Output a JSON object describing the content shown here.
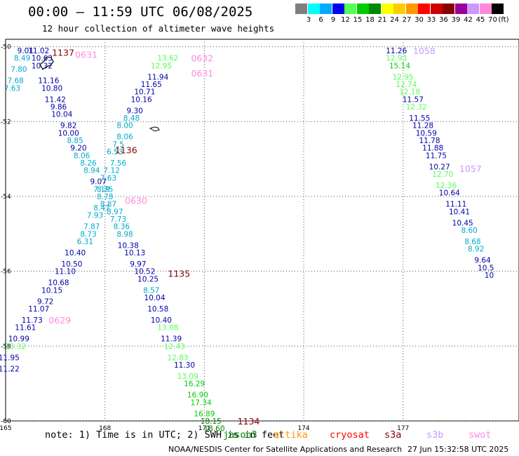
{
  "header": {
    "title": "00:00 – 11:59 UTC 06/08/2025",
    "subtitle": "12 hour collection of altimeter wave heights"
  },
  "legend": {
    "unit": "(ft)",
    "items": [
      {
        "label": "3",
        "color": "#7f7f7f"
      },
      {
        "label": "6",
        "color": "#00ffff"
      },
      {
        "label": "9",
        "color": "#00aaff"
      },
      {
        "label": "12",
        "color": "#0000ee"
      },
      {
        "label": "15",
        "color": "#55ff55"
      },
      {
        "label": "18",
        "color": "#00cc00"
      },
      {
        "label": "21",
        "color": "#008800"
      },
      {
        "label": "24",
        "color": "#ffff00"
      },
      {
        "label": "27",
        "color": "#ffcc00"
      },
      {
        "label": "30",
        "color": "#ff9900"
      },
      {
        "label": "33",
        "color": "#ff0000"
      },
      {
        "label": "36",
        "color": "#cc0000"
      },
      {
        "label": "39",
        "color": "#880000"
      },
      {
        "label": "42",
        "color": "#990099"
      },
      {
        "label": "45",
        "color": "#cc99ff"
      },
      {
        "label": "70",
        "color": "#ff88dd"
      },
      {
        "label": "",
        "color": "#000000"
      }
    ]
  },
  "axes": {
    "lon_ticks": [
      {
        "value": 165,
        "label": "165"
      },
      {
        "value": 168,
        "label": "168"
      },
      {
        "value": 171,
        "label": "171"
      },
      {
        "value": 174,
        "label": "174"
      },
      {
        "value": 177,
        "label": "177"
      }
    ],
    "lat_ticks": [
      {
        "value": -50,
        "label": "-50"
      },
      {
        "value": -52,
        "label": "-52"
      },
      {
        "value": -54,
        "label": "-54"
      },
      {
        "value": -56,
        "label": "-56"
      },
      {
        "value": -58,
        "label": "-58"
      },
      {
        "value": -60,
        "label": "-60"
      }
    ],
    "lon_range": [
      165,
      180.5
    ],
    "lat_range": [
      -60,
      -49.8
    ]
  },
  "chart_data": {
    "type": "scatter",
    "tracks": [
      {
        "time": "1137",
        "color": "#880000",
        "label_pos": {
          "lon": 166.4,
          "lat": -50.15
        },
        "points": [
          {
            "lon": 165.6,
            "lat": -50.1,
            "v": "9.01",
            "c": "#0000aa"
          },
          {
            "lon": 165.5,
            "lat": -50.3,
            "v": "8.49",
            "c": "#00aacc"
          },
          {
            "lon": 165.4,
            "lat": -50.6,
            "v": "7.80",
            "c": "#00aacc"
          },
          {
            "lon": 165.3,
            "lat": -50.9,
            "v": "7.68",
            "c": "#00aacc"
          },
          {
            "lon": 165.2,
            "lat": -51.1,
            "v": "7.63",
            "c": "#00aacc"
          }
        ]
      },
      {
        "time": "0631",
        "color": "#ff88dd",
        "label_pos": {
          "lon": 167.1,
          "lat": -50.2
        },
        "points": [
          {
            "lon": 166.0,
            "lat": -50.1,
            "v": "11.02",
            "c": "#0000aa"
          },
          {
            "lon": 166.1,
            "lat": -50.3,
            "v": "10.63",
            "c": "#0000aa"
          },
          {
            "lon": 166.1,
            "lat": -50.5,
            "v": "10.32",
            "c": "#0000aa"
          },
          {
            "lon": 166.3,
            "lat": -50.9,
            "v": "11.16",
            "c": "#0000aa"
          },
          {
            "lon": 166.4,
            "lat": -51.1,
            "v": "10.80",
            "c": "#0000aa"
          },
          {
            "lon": 166.5,
            "lat": -51.4,
            "v": "11.42",
            "c": "#0000aa"
          },
          {
            "lon": 166.6,
            "lat": -51.6,
            "v": "9.86",
            "c": "#0000aa"
          },
          {
            "lon": 166.7,
            "lat": -51.8,
            "v": "10.04",
            "c": "#0000aa"
          },
          {
            "lon": 166.9,
            "lat": -52.1,
            "v": "9.82",
            "c": "#0000aa"
          },
          {
            "lon": 166.9,
            "lat": -52.3,
            "v": "10.00",
            "c": "#0000aa"
          },
          {
            "lon": 167.1,
            "lat": -52.5,
            "v": "8.85",
            "c": "#00aacc"
          },
          {
            "lon": 167.2,
            "lat": -52.7,
            "v": "9.20",
            "c": "#0000aa"
          },
          {
            "lon": 167.3,
            "lat": -52.9,
            "v": "8.06",
            "c": "#00aacc"
          },
          {
            "lon": 167.5,
            "lat": -53.1,
            "v": "8.26",
            "c": "#00aacc"
          },
          {
            "lon": 167.6,
            "lat": -53.3,
            "v": "8.94",
            "c": "#00aacc"
          },
          {
            "lon": 167.8,
            "lat": -53.6,
            "v": "9.07",
            "c": "#0000aa"
          },
          {
            "lon": 167.9,
            "lat": -53.8,
            "v": "7.19",
            "c": "#00aacc"
          },
          {
            "lon": 168.0,
            "lat": -54.0,
            "v": "8.78",
            "c": "#00aacc"
          },
          {
            "lon": 168.1,
            "lat": -54.2,
            "v": "8.87",
            "c": "#00aacc"
          },
          {
            "lon": 168.3,
            "lat": -54.4,
            "v": "8.97",
            "c": "#00aacc"
          },
          {
            "lon": 168.4,
            "lat": -54.6,
            "v": "7.73",
            "c": "#00aacc"
          },
          {
            "lon": 168.5,
            "lat": -54.8,
            "v": "8.36",
            "c": "#00aacc"
          },
          {
            "lon": 168.6,
            "lat": -55.0,
            "v": "8.98",
            "c": "#00aacc"
          },
          {
            "lon": 168.7,
            "lat": -55.3,
            "v": "10.38",
            "c": "#0000aa"
          },
          {
            "lon": 168.9,
            "lat": -55.5,
            "v": "10.13",
            "c": "#0000aa"
          },
          {
            "lon": 169.0,
            "lat": -55.8,
            "v": "9.97",
            "c": "#0000aa"
          },
          {
            "lon": 169.2,
            "lat": -56.0,
            "v": "10.52",
            "c": "#0000aa"
          },
          {
            "lon": 169.3,
            "lat": -56.2,
            "v": "10.25",
            "c": "#0000aa"
          },
          {
            "lon": 169.4,
            "lat": -56.5,
            "v": "8.57",
            "c": "#00aacc"
          },
          {
            "lon": 169.5,
            "lat": -56.7,
            "v": "10.04",
            "c": "#0000aa"
          },
          {
            "lon": 169.6,
            "lat": -57.0,
            "v": "10.58",
            "c": "#0000aa"
          },
          {
            "lon": 169.7,
            "lat": -57.3,
            "v": "10.40",
            "c": "#0000aa"
          },
          {
            "lon": 169.9,
            "lat": -57.5,
            "v": "13.08",
            "c": "#55ff55"
          },
          {
            "lon": 170.0,
            "lat": -57.8,
            "v": "11.39",
            "c": "#0000aa"
          },
          {
            "lon": 170.1,
            "lat": -58.0,
            "v": "12.43",
            "c": "#55ff55"
          },
          {
            "lon": 170.2,
            "lat": -58.3,
            "v": "12.83",
            "c": "#55ff55"
          },
          {
            "lon": 170.4,
            "lat": -58.5,
            "v": "11.30",
            "c": "#0000aa"
          },
          {
            "lon": 170.5,
            "lat": -58.8,
            "v": "13.09",
            "c": "#55ff55"
          },
          {
            "lon": 170.7,
            "lat": -59.0,
            "v": "16.29",
            "c": "#00cc00"
          },
          {
            "lon": 170.8,
            "lat": -59.3,
            "v": "16.90",
            "c": "#00cc00"
          },
          {
            "lon": 170.9,
            "lat": -59.5,
            "v": "17.34",
            "c": "#00cc00"
          },
          {
            "lon": 171.0,
            "lat": -59.8,
            "v": "16.89",
            "c": "#00cc00"
          },
          {
            "lon": 171.2,
            "lat": -60.0,
            "v": "18.15",
            "c": "#008800"
          },
          {
            "lon": 171.3,
            "lat": -60.2,
            "v": "18.60",
            "c": "#008800"
          }
        ]
      },
      {
        "time": "0632",
        "color": "#ff88dd",
        "label_pos": {
          "lon": 170.6,
          "lat": -50.3
        },
        "points": [
          {
            "lon": 169.9,
            "lat": -50.3,
            "v": "13.62",
            "c": "#55ff55"
          },
          {
            "lon": 169.7,
            "lat": -50.5,
            "v": "12.95",
            "c": "#55ff55"
          },
          {
            "lon": 169.6,
            "lat": -50.8,
            "v": "11.94",
            "c": "#0000aa"
          },
          {
            "lon": 169.4,
            "lat": -51.0,
            "v": "11.65",
            "c": "#0000aa"
          },
          {
            "lon": 169.2,
            "lat": -51.2,
            "v": "10.71",
            "c": "#0000aa"
          },
          {
            "lon": 169.1,
            "lat": -51.4,
            "v": "10.16",
            "c": "#0000aa"
          },
          {
            "lon": 168.9,
            "lat": -51.7,
            "v": "9.30",
            "c": "#0000aa"
          },
          {
            "lon": 168.8,
            "lat": -51.9,
            "v": "8.48",
            "c": "#00aacc"
          },
          {
            "lon": 168.6,
            "lat": -52.1,
            "v": "8.00",
            "c": "#00aacc"
          },
          {
            "lon": 168.6,
            "lat": -52.4,
            "v": "8.06",
            "c": "#00aacc"
          },
          {
            "lon": 168.4,
            "lat": -52.6,
            "v": "7.5",
            "c": "#00aacc"
          },
          {
            "lon": 168.3,
            "lat": -52.8,
            "v": "6.53",
            "c": "#00aacc"
          },
          {
            "lon": 168.4,
            "lat": -53.1,
            "v": "7.56",
            "c": "#00aacc"
          },
          {
            "lon": 168.2,
            "lat": -53.3,
            "v": "7.12",
            "c": "#00aacc"
          },
          {
            "lon": 168.1,
            "lat": -53.5,
            "v": "7.63",
            "c": "#00aacc"
          },
          {
            "lon": 168.0,
            "lat": -53.8,
            "v": "8.25",
            "c": "#00aacc"
          },
          {
            "lon": 167.9,
            "lat": -54.3,
            "v": "8.47",
            "c": "#00aacc"
          },
          {
            "lon": 167.7,
            "lat": -54.5,
            "v": "7.93",
            "c": "#00aacc"
          },
          {
            "lon": 167.6,
            "lat": -54.8,
            "v": "7.87",
            "c": "#00aacc"
          },
          {
            "lon": 167.5,
            "lat": -55.0,
            "v": "8.73",
            "c": "#00aacc"
          },
          {
            "lon": 167.4,
            "lat": -55.2,
            "v": "6.31",
            "c": "#00aacc"
          },
          {
            "lon": 167.1,
            "lat": -55.5,
            "v": "10.40",
            "c": "#0000aa"
          },
          {
            "lon": 167.0,
            "lat": -55.8,
            "v": "10.50",
            "c": "#0000aa"
          },
          {
            "lon": 166.8,
            "lat": -56.0,
            "v": "11.10",
            "c": "#0000aa"
          },
          {
            "lon": 166.6,
            "lat": -56.3,
            "v": "10.68",
            "c": "#0000aa"
          },
          {
            "lon": 166.4,
            "lat": -56.5,
            "v": "10.15",
            "c": "#0000aa"
          },
          {
            "lon": 166.2,
            "lat": -56.8,
            "v": "9.72",
            "c": "#0000aa"
          },
          {
            "lon": 166.0,
            "lat": -57.0,
            "v": "11.07",
            "c": "#0000aa"
          },
          {
            "lon": 165.8,
            "lat": -57.3,
            "v": "11.73",
            "c": "#0000aa"
          },
          {
            "lon": 165.6,
            "lat": -57.5,
            "v": "11.61",
            "c": "#0000aa"
          },
          {
            "lon": 165.4,
            "lat": -57.8,
            "v": "10.99",
            "c": "#0000aa"
          },
          {
            "lon": 165.3,
            "lat": -58.0,
            "v": "13.32",
            "c": "#55ff55"
          },
          {
            "lon": 165.1,
            "lat": -58.3,
            "v": "11.95",
            "c": "#0000aa"
          },
          {
            "lon": 165.1,
            "lat": -58.6,
            "v": "11.22",
            "c": "#0000aa"
          }
        ]
      },
      {
        "time": "1058",
        "color": "#cc99ff",
        "label_pos": {
          "lon": 177.3,
          "lat": -50.1
        },
        "points": [
          {
            "lon": 176.8,
            "lat": -50.1,
            "v": "11.26",
            "c": "#0000aa"
          },
          {
            "lon": 176.8,
            "lat": -50.3,
            "v": "12.93",
            "c": "#55ff55"
          },
          {
            "lon": 176.9,
            "lat": -50.5,
            "v": "15.14",
            "c": "#00cc00"
          },
          {
            "lon": 177.0,
            "lat": -50.8,
            "v": "12.95",
            "c": "#55ff55"
          },
          {
            "lon": 177.1,
            "lat": -51.0,
            "v": "12.74",
            "c": "#55ff55"
          },
          {
            "lon": 177.2,
            "lat": -51.2,
            "v": "12.18",
            "c": "#55ff55"
          },
          {
            "lon": 177.3,
            "lat": -51.4,
            "v": "11.57",
            "c": "#0000aa"
          },
          {
            "lon": 177.4,
            "lat": -51.6,
            "v": "12.32",
            "c": "#55ff55"
          },
          {
            "lon": 177.5,
            "lat": -51.9,
            "v": "11.55",
            "c": "#0000aa"
          },
          {
            "lon": 177.6,
            "lat": -52.1,
            "v": "11.28",
            "c": "#0000aa"
          },
          {
            "lon": 177.7,
            "lat": -52.3,
            "v": "10.59",
            "c": "#0000aa"
          },
          {
            "lon": 177.8,
            "lat": -52.5,
            "v": "11.78",
            "c": "#0000aa"
          },
          {
            "lon": 177.9,
            "lat": -52.7,
            "v": "11.88",
            "c": "#0000aa"
          },
          {
            "lon": 178.0,
            "lat": -52.9,
            "v": "11.75",
            "c": "#0000aa"
          }
        ]
      },
      {
        "time": "1057",
        "color": "#cc99ff",
        "label_pos": {
          "lon": 178.7,
          "lat": -53.25
        },
        "points": [
          {
            "lon": 178.1,
            "lat": -53.2,
            "v": "10.27",
            "c": "#0000aa"
          },
          {
            "lon": 178.2,
            "lat": -53.4,
            "v": "12.70",
            "c": "#55ff55"
          },
          {
            "lon": 178.3,
            "lat": -53.7,
            "v": "12.36",
            "c": "#55ff55"
          },
          {
            "lon": 178.4,
            "lat": -53.9,
            "v": "10.64",
            "c": "#0000aa"
          },
          {
            "lon": 178.6,
            "lat": -54.2,
            "v": "11.11",
            "c": "#0000aa"
          },
          {
            "lon": 178.7,
            "lat": -54.4,
            "v": "10.41",
            "c": "#0000aa"
          },
          {
            "lon": 178.8,
            "lat": -54.7,
            "v": "10.45",
            "c": "#0000aa"
          },
          {
            "lon": 179.0,
            "lat": -54.9,
            "v": "8.60",
            "c": "#00aacc"
          },
          {
            "lon": 179.1,
            "lat": -55.2,
            "v": "8.68",
            "c": "#00aacc"
          },
          {
            "lon": 179.2,
            "lat": -55.4,
            "v": "8.92",
            "c": "#00aacc"
          },
          {
            "lon": 179.4,
            "lat": -55.7,
            "v": "9.64",
            "c": "#0000aa"
          },
          {
            "lon": 179.5,
            "lat": -55.9,
            "v": "10.5",
            "c": "#0000aa"
          },
          {
            "lon": 179.6,
            "lat": -56.1,
            "v": "10",
            "c": "#0000aa"
          }
        ]
      }
    ],
    "extra_labels": [
      {
        "text": "1136",
        "color": "#880000",
        "lon": 168.3,
        "lat": -52.75
      },
      {
        "text": "0630",
        "color": "#ff88dd",
        "lon": 168.6,
        "lat": -54.1
      },
      {
        "text": "1135",
        "color": "#880000",
        "lon": 169.9,
        "lat": -56.05
      },
      {
        "text": "0629",
        "color": "#ff88dd",
        "lon": 166.3,
        "lat": -57.3
      },
      {
        "text": "1134",
        "color": "#880000",
        "lon": 172.0,
        "lat": -60.0
      },
      {
        "text": "0631",
        "color": "#ff88dd",
        "lon": 170.6,
        "lat": -50.7
      }
    ]
  },
  "footer": {
    "note": "note:  1) Time is in UTC;  2) SWH is in feet",
    "satellites": [
      {
        "name": "jason3",
        "color": "#008800"
      },
      {
        "name": "altika",
        "color": "#ff9900"
      },
      {
        "name": "cryosat",
        "color": "#ff0000"
      },
      {
        "name": "s3a",
        "color": "#880000"
      },
      {
        "name": "s3b",
        "color": "#cc99ff"
      },
      {
        "name": "swot",
        "color": "#ff88dd"
      }
    ],
    "credit": "NOAA/NESDIS Center for Satellite Applications and Research",
    "stamp": "27 Jun 15:32:58 UTC 2025"
  }
}
